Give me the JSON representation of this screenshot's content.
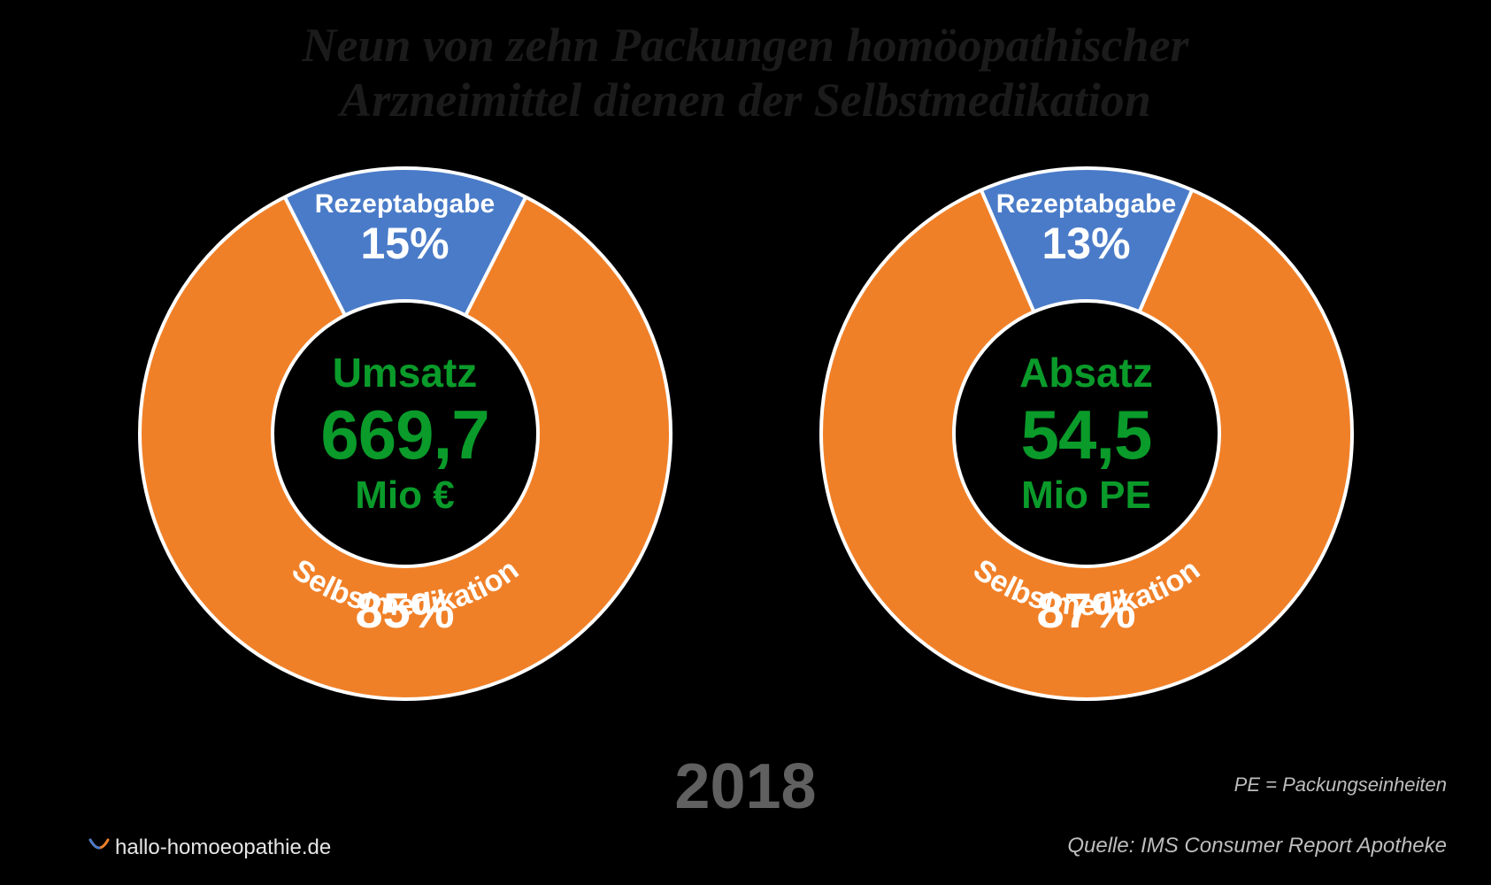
{
  "title_line1": "Neun von zehn Packungen homöopathischer",
  "title_line2": "Arzneimittel dienen der Selbstmedikation",
  "year": "2018",
  "footnote": "PE = Packungseinheiten",
  "source": "Quelle: IMS Consumer Report Apotheke",
  "brand": "hallo-homoeopathie.de",
  "colors": {
    "background": "#000000",
    "slice_small": "#4a7bc8",
    "slice_large": "#f08028",
    "ring_border": "#ffffff",
    "center_fill": "#000000",
    "center_text": "#0a9b2a",
    "slice_text": "#ffffff",
    "year_text": "#606060",
    "footer_text": "#bdbdbd"
  },
  "donut_geometry": {
    "outer_radius": 300,
    "inner_radius": 150,
    "border_width": 4,
    "divider_width": 4
  },
  "charts": [
    {
      "id": "umsatz",
      "center_label": "Umsatz",
      "center_value": "669,7",
      "center_unit": "Mio €",
      "small_slice": {
        "label": "Rezeptabgabe",
        "percent": 15,
        "percent_text": "15%"
      },
      "large_slice": {
        "label": "Selbstmedikation",
        "percent": 85,
        "percent_text": "85%"
      }
    },
    {
      "id": "absatz",
      "center_label": "Absatz",
      "center_value": "54,5",
      "center_unit": "Mio PE",
      "small_slice": {
        "label": "Rezeptabgabe",
        "percent": 13,
        "percent_text": "13%"
      },
      "large_slice": {
        "label": "Selbstmedikation",
        "percent": 87,
        "percent_text": "87%"
      }
    }
  ]
}
